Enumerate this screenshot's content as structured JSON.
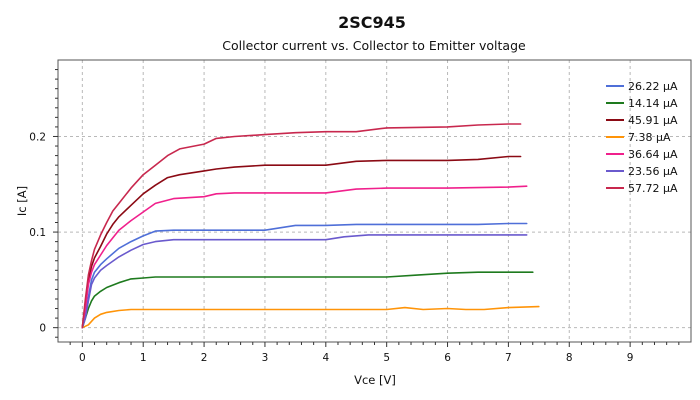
{
  "chart_data": {
    "type": "line",
    "title": "2SC945",
    "subtitle": "Collector current vs. Collector to Emitter voltage",
    "xlabel": "Vce [V]",
    "ylabel": "Ic [A]",
    "xlim": [
      -0.4,
      10
    ],
    "ylim": [
      -0.015,
      0.28
    ],
    "xticks": [
      0,
      1,
      2,
      3,
      4,
      5,
      6,
      7,
      8,
      9
    ],
    "yticks": [
      0,
      0.1,
      0.2
    ],
    "ytick_labels": [
      "0",
      "0.1",
      "0.2"
    ],
    "grid": true,
    "legend_position": "top-right",
    "series": [
      {
        "name": "26.22 μA",
        "color": "#4f6fd8",
        "x": [
          0.0,
          0.05,
          0.1,
          0.15,
          0.2,
          0.3,
          0.4,
          0.6,
          0.8,
          1.0,
          1.2,
          1.5,
          2.0,
          2.5,
          3.0,
          3.5,
          4.0,
          4.5,
          5.0,
          5.5,
          6.0,
          6.5,
          7.0,
          7.3
        ],
        "y": [
          0.0,
          0.012,
          0.032,
          0.05,
          0.058,
          0.066,
          0.072,
          0.083,
          0.09,
          0.096,
          0.101,
          0.102,
          0.102,
          0.102,
          0.102,
          0.107,
          0.107,
          0.108,
          0.108,
          0.108,
          0.108,
          0.108,
          0.109,
          0.109
        ]
      },
      {
        "name": "14.14 μA",
        "color": "#1e7a1e",
        "x": [
          0.0,
          0.05,
          0.1,
          0.15,
          0.2,
          0.3,
          0.4,
          0.6,
          0.8,
          1.0,
          1.2,
          1.5,
          2.0,
          3.0,
          4.0,
          5.0,
          5.5,
          6.0,
          6.5,
          7.0,
          7.4
        ],
        "y": [
          0.0,
          0.01,
          0.02,
          0.028,
          0.033,
          0.038,
          0.042,
          0.047,
          0.051,
          0.052,
          0.053,
          0.053,
          0.053,
          0.053,
          0.053,
          0.053,
          0.055,
          0.057,
          0.058,
          0.058,
          0.058
        ]
      },
      {
        "name": "45.91 μA",
        "color": "#8b0a14",
        "x": [
          0.0,
          0.05,
          0.1,
          0.15,
          0.2,
          0.3,
          0.4,
          0.5,
          0.6,
          0.8,
          1.0,
          1.2,
          1.4,
          1.6,
          2.0,
          2.2,
          2.5,
          3.0,
          3.5,
          4.0,
          4.5,
          5.0,
          6.0,
          6.5,
          7.0,
          7.2
        ],
        "y": [
          0.0,
          0.025,
          0.05,
          0.064,
          0.073,
          0.085,
          0.098,
          0.108,
          0.116,
          0.128,
          0.14,
          0.149,
          0.157,
          0.16,
          0.164,
          0.166,
          0.168,
          0.17,
          0.17,
          0.17,
          0.174,
          0.175,
          0.175,
          0.176,
          0.179,
          0.179
        ]
      },
      {
        "name": "7.38 μA",
        "color": "#ff9408",
        "x": [
          0.0,
          0.1,
          0.2,
          0.3,
          0.4,
          0.6,
          0.8,
          1.0,
          2.0,
          3.0,
          4.0,
          5.0,
          5.3,
          5.6,
          6.0,
          6.3,
          6.6,
          7.0,
          7.5
        ],
        "y": [
          0.0,
          0.003,
          0.01,
          0.014,
          0.016,
          0.018,
          0.019,
          0.019,
          0.019,
          0.019,
          0.019,
          0.019,
          0.021,
          0.019,
          0.02,
          0.019,
          0.019,
          0.021,
          0.022
        ]
      },
      {
        "name": "36.64 μA",
        "color": "#f0208c",
        "x": [
          0.0,
          0.05,
          0.1,
          0.15,
          0.2,
          0.3,
          0.4,
          0.6,
          0.8,
          1.0,
          1.2,
          1.5,
          2.0,
          2.2,
          2.5,
          3.0,
          3.5,
          4.0,
          4.5,
          5.0,
          6.0,
          7.0,
          7.3
        ],
        "y": [
          0.0,
          0.02,
          0.045,
          0.058,
          0.066,
          0.076,
          0.086,
          0.102,
          0.112,
          0.121,
          0.13,
          0.135,
          0.137,
          0.14,
          0.141,
          0.141,
          0.141,
          0.141,
          0.145,
          0.146,
          0.146,
          0.147,
          0.148
        ]
      },
      {
        "name": "23.56 μA",
        "color": "#6a5acd",
        "x": [
          0.0,
          0.05,
          0.1,
          0.15,
          0.2,
          0.3,
          0.4,
          0.6,
          0.8,
          1.0,
          1.2,
          1.5,
          2.0,
          3.0,
          4.0,
          4.3,
          4.7,
          5.0,
          6.0,
          7.0,
          7.3
        ],
        "y": [
          0.0,
          0.01,
          0.028,
          0.045,
          0.052,
          0.06,
          0.065,
          0.074,
          0.081,
          0.087,
          0.09,
          0.092,
          0.092,
          0.092,
          0.092,
          0.095,
          0.097,
          0.097,
          0.097,
          0.097,
          0.097
        ]
      },
      {
        "name": "57.72 μA",
        "color": "#c8284e",
        "x": [
          0.0,
          0.05,
          0.1,
          0.15,
          0.2,
          0.3,
          0.4,
          0.5,
          0.6,
          0.8,
          1.0,
          1.2,
          1.4,
          1.6,
          2.0,
          2.2,
          2.5,
          3.0,
          3.5,
          4.0,
          4.5,
          5.0,
          6.0,
          6.5,
          7.0,
          7.2
        ],
        "y": [
          0.0,
          0.03,
          0.055,
          0.07,
          0.082,
          0.097,
          0.11,
          0.122,
          0.13,
          0.146,
          0.16,
          0.17,
          0.18,
          0.187,
          0.192,
          0.198,
          0.2,
          0.202,
          0.204,
          0.205,
          0.205,
          0.209,
          0.21,
          0.212,
          0.213,
          0.213
        ]
      }
    ]
  }
}
